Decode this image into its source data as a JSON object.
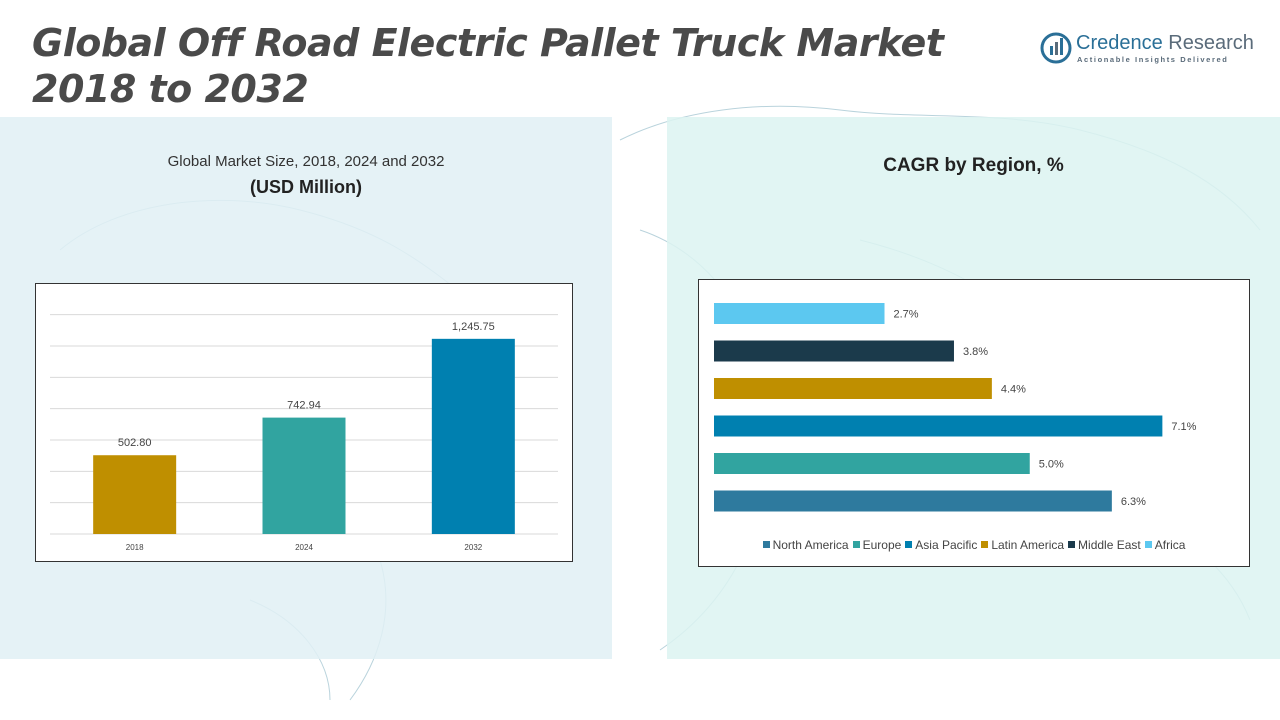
{
  "header": {
    "title_line1": "Global Off Road Electric Pallet Truck Market",
    "title_line2": "2018 to 2032"
  },
  "logo": {
    "icon": "credence-logo-icon",
    "name_part1": "Credence",
    "name_part2": "Research",
    "tagline": "Actionable Insights Delivered",
    "color": "#2a6f97"
  },
  "left_panel": {
    "subtitle": "Global Market Size, 2018, 2024 and 2032",
    "unit": "(USD Million)"
  },
  "right_panel": {
    "title": "CAGR by Region, %"
  },
  "chart_data": [
    {
      "type": "bar",
      "title": "Global Market Size, 2018, 2024 and 2032",
      "ylabel": "USD Million",
      "categories": [
        "2018",
        "2024",
        "2032"
      ],
      "values": [
        502.8,
        742.94,
        1245.75
      ],
      "labels": [
        "502.80",
        "742.94",
        "1,245.75"
      ],
      "colors": [
        "#bf8f00",
        "#31a4a0",
        "#0080b0"
      ],
      "ylim": [
        0,
        1500
      ],
      "grid": true
    },
    {
      "type": "bar",
      "orientation": "horizontal",
      "title": "CAGR by Region, %",
      "categories": [
        "Africa",
        "Middle East",
        "Latin America",
        "Asia Pacific",
        "Europe",
        "North America"
      ],
      "values": [
        2.7,
        3.8,
        4.4,
        7.1,
        5.0,
        6.3
      ],
      "labels": [
        "2.7%",
        "3.8%",
        "4.4%",
        "7.1%",
        "5.0%",
        "6.3%"
      ],
      "colors": [
        "#5cc8f0",
        "#1b3a4b",
        "#bf8f00",
        "#0080b0",
        "#31a4a0",
        "#2e7a9e"
      ],
      "xlim": [
        0,
        7.3
      ],
      "legend_order": [
        "North America",
        "Europe",
        "Asia Pacific",
        "Latin America",
        "Middle East",
        "Africa"
      ],
      "legend_position": "bottom"
    }
  ]
}
